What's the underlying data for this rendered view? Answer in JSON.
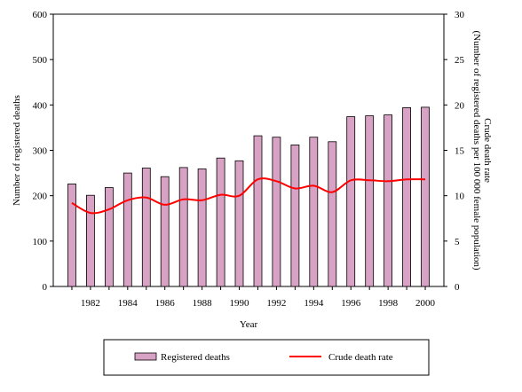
{
  "chart_data": {
    "type": "bar",
    "title": "",
    "xlabel": "Year",
    "ylabel": "Number of registered deaths",
    "y2label_line1": "Crude death rate",
    "y2label_line2": "(Number of registered deaths per 100 000 female population)",
    "ylim": [
      0,
      600
    ],
    "y2lim": [
      0,
      30
    ],
    "yticks": [
      0,
      100,
      200,
      300,
      400,
      500,
      600
    ],
    "y2ticks": [
      0,
      5,
      10,
      15,
      20,
      25,
      30
    ],
    "x": [
      1981,
      1982,
      1983,
      1984,
      1985,
      1986,
      1987,
      1988,
      1989,
      1990,
      1991,
      1992,
      1993,
      1994,
      1995,
      1996,
      1997,
      1998,
      1999,
      2000
    ],
    "xticks": [
      1982,
      1984,
      1986,
      1988,
      1990,
      1992,
      1994,
      1996,
      1998,
      2000
    ],
    "grid": false,
    "legend_position": "bottom",
    "series": [
      {
        "name": "Registered deaths",
        "type": "bar",
        "axis": "left",
        "color": "#d8a2c4",
        "values": [
          226,
          201,
          218,
          250,
          261,
          242,
          262,
          259,
          283,
          277,
          332,
          329,
          312,
          329,
          319,
          374,
          376,
          378,
          394,
          395
        ]
      },
      {
        "name": "Crude death rate",
        "type": "line",
        "axis": "right",
        "color": "#ff0000",
        "values": [
          9.2,
          8.1,
          8.5,
          9.5,
          9.8,
          9.0,
          9.6,
          9.5,
          10.1,
          10.0,
          11.8,
          11.6,
          10.8,
          11.1,
          10.4,
          11.7,
          11.7,
          11.6,
          11.8,
          11.8
        ]
      }
    ]
  }
}
